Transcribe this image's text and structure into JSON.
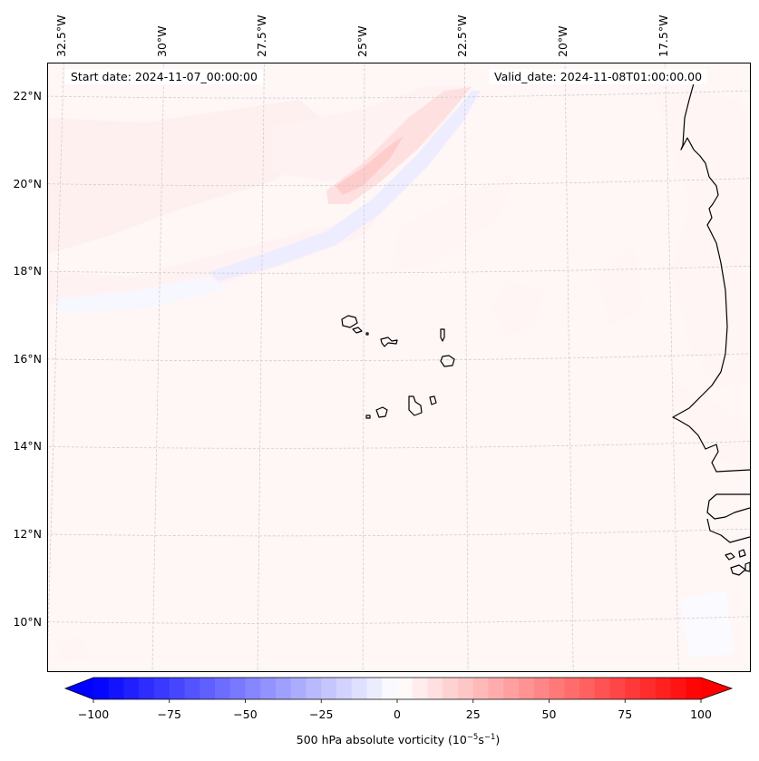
{
  "figure": {
    "start_date_text": "Start date: 2024-11-07_00:00:00",
    "valid_date_text": "Valid_date: 2024-11-08T01:00:00.00"
  },
  "map": {
    "projection_note": "regional map, West African coast and Cape Verde islands",
    "extent": {
      "lon_min": -32.7,
      "lon_max": -15.6,
      "lat_min": 8.9,
      "lat_max": 22.8
    },
    "lon_ticks": [
      {
        "value": -32.5,
        "label": "32.5°W"
      },
      {
        "value": -30.0,
        "label": "30°W"
      },
      {
        "value": -27.5,
        "label": "27.5°W"
      },
      {
        "value": -25.0,
        "label": "25°W"
      },
      {
        "value": -22.5,
        "label": "22.5°W"
      },
      {
        "value": -20.0,
        "label": "20°W"
      },
      {
        "value": -17.5,
        "label": "17.5°W"
      }
    ],
    "lat_ticks": [
      {
        "value": 22,
        "label": "22°N"
      },
      {
        "value": 20,
        "label": "20°N"
      },
      {
        "value": 18,
        "label": "18°N"
      },
      {
        "value": 16,
        "label": "16°N"
      },
      {
        "value": 14,
        "label": "14°N"
      },
      {
        "value": 12,
        "label": "12°N"
      },
      {
        "value": 10,
        "label": "10°N"
      }
    ],
    "background_color": "#fff6f6",
    "gridline_color": "#c8c8c8",
    "coastline_color": "#000000"
  },
  "chart_data": {
    "type": "heatmap",
    "title": "",
    "variable": "500 hPa absolute vorticity",
    "units": "10^-5 s^-1",
    "colormap": "bwr",
    "levels_range": [
      -100,
      100
    ],
    "level_step": 5,
    "extend": "both",
    "colorbar": {
      "label_main": "500 hPa absolute vorticity (10",
      "label_exp1": "−5",
      "label_mid": "s",
      "label_exp2": "−1",
      "label_end": ")",
      "ticks": [
        {
          "value": -100,
          "label": "−100"
        },
        {
          "value": -75,
          "label": "−75"
        },
        {
          "value": -50,
          "label": "−50"
        },
        {
          "value": -25,
          "label": "−25"
        },
        {
          "value": 0,
          "label": "0"
        },
        {
          "value": 25,
          "label": "25"
        },
        {
          "value": 50,
          "label": "50"
        },
        {
          "value": 75,
          "label": "75"
        },
        {
          "value": 100,
          "label": "100"
        }
      ],
      "min_color": "#0000ff",
      "mid_color": "#ffffff",
      "max_color": "#ff0000"
    },
    "features": [
      {
        "name": "positive vorticity band",
        "description": "SW–NE band from ~26°W,19.8°N to ~22.5°W,22.5°N",
        "peak_value": 25
      },
      {
        "name": "negative vorticity band",
        "description": "parallel band SE of the positive band, ~28°W,18°N to ~21.5°W,22°N",
        "min_value": -10
      },
      {
        "name": "weak positive patches",
        "description": "scattered patches over northern and western domain",
        "typical_value": 5
      },
      {
        "name": "background",
        "description": "near-zero vorticity over most of domain",
        "typical_value": 2
      }
    ]
  }
}
